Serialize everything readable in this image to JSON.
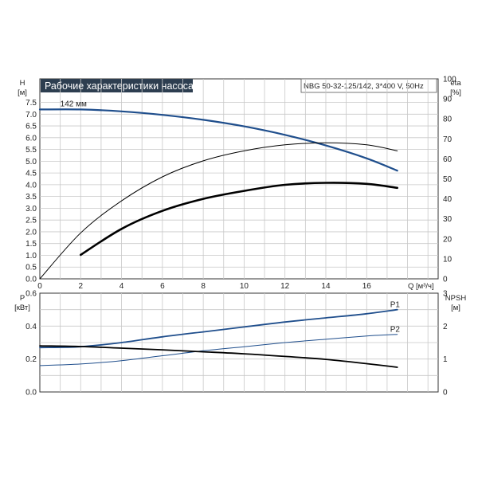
{
  "chart_data": [
    {
      "type": "line",
      "title": "Рабочие характеристики насоса",
      "subtitle": "NBG 50-32-125/142, 3*400 V, 50Hz",
      "xlabel": "Q [м³/ч]",
      "x_ticks": [
        "0",
        "2",
        "4",
        "6",
        "8",
        "10",
        "12",
        "14",
        "16"
      ],
      "xlim": [
        0,
        19.5
      ],
      "ylabel_left": [
        "H",
        "[м]"
      ],
      "ylim_left": [
        0,
        8.5
      ],
      "y_ticks_left": [
        "0.0",
        "0.5",
        "1.0",
        "1.5",
        "2.0",
        "2.5",
        "3.0",
        "3.5",
        "4.0",
        "4.5",
        "5.0",
        "5.5",
        "6.0",
        "6.5",
        "7.0",
        "7.5"
      ],
      "ylabel_right": [
        "eta",
        "[%]"
      ],
      "ylim_right": [
        0,
        100
      ],
      "y_ticks_right": [
        "0",
        "10",
        "20",
        "30",
        "40",
        "50",
        "60",
        "70",
        "80",
        "90",
        "100"
      ],
      "grid": true,
      "annotation": "142 мм",
      "series": [
        {
          "axis": "left",
          "color": "#1f4e8c",
          "x": [
            0,
            2,
            4,
            6,
            8,
            10,
            12,
            14,
            16,
            17.5
          ],
          "y": [
            7.2,
            7.2,
            7.12,
            6.97,
            6.76,
            6.48,
            6.12,
            5.67,
            5.12,
            4.6
          ]
        },
        {
          "axis": "right",
          "color": "#000000",
          "x": [
            0,
            2,
            4,
            6,
            8,
            10,
            12,
            14,
            16,
            17.5
          ],
          "y": [
            0,
            23,
            39,
            51,
            59,
            64,
            67,
            68,
            67,
            64
          ]
        },
        {
          "axis": "right",
          "color": "#000000",
          "x": [
            2,
            4,
            6,
            8,
            10,
            12,
            14,
            16,
            17.5
          ],
          "y": [
            12,
            25,
            34,
            40,
            44,
            47,
            48,
            47.5,
            45.5
          ]
        }
      ]
    },
    {
      "type": "line",
      "xlim": [
        0,
        19.5
      ],
      "ylabel_left": [
        "P",
        "[кВт]"
      ],
      "ylim_left": [
        0,
        0.6
      ],
      "y_ticks_left": [
        "0.0",
        "0.2",
        "0.4",
        "0.6"
      ],
      "ylabel_right": [
        "NPSH",
        "[м]"
      ],
      "ylim_right": [
        0,
        3
      ],
      "y_ticks_right": [
        "0",
        "1",
        "2",
        "3"
      ],
      "grid": true,
      "series": [
        {
          "name": "P1",
          "axis": "left",
          "color": "#1f4e8c",
          "x": [
            0,
            2,
            4,
            6,
            8,
            10,
            12,
            14,
            16,
            17.5
          ],
          "y": [
            0.27,
            0.275,
            0.3,
            0.335,
            0.365,
            0.395,
            0.425,
            0.45,
            0.475,
            0.5
          ]
        },
        {
          "name": "P2",
          "axis": "left",
          "color": "#1f4e8c",
          "x": [
            0,
            2,
            4,
            6,
            8,
            10,
            12,
            14,
            16,
            17.5
          ],
          "y": [
            0.16,
            0.17,
            0.19,
            0.22,
            0.25,
            0.275,
            0.3,
            0.32,
            0.34,
            0.35
          ]
        },
        {
          "axis": "right",
          "color": "#000000",
          "x": [
            0,
            2,
            4,
            6,
            8,
            10,
            12,
            14,
            16,
            17.5
          ],
          "y": [
            1.4,
            1.38,
            1.33,
            1.28,
            1.22,
            1.16,
            1.08,
            0.99,
            0.86,
            0.75
          ]
        }
      ]
    }
  ]
}
